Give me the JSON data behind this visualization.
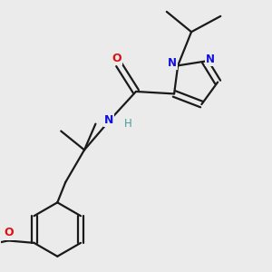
{
  "background_color": "#ebebeb",
  "bond_color": "#1a1a1a",
  "bond_width": 1.6,
  "atom_colors": {
    "N": "#1010dd",
    "O": "#dd1010",
    "H": "#4a9a9a",
    "C": "#1a1a1a"
  },
  "figsize": [
    3.0,
    3.0
  ],
  "dpi": 100,
  "xlim": [
    0.0,
    6.0
  ],
  "ylim": [
    0.0,
    6.0
  ]
}
